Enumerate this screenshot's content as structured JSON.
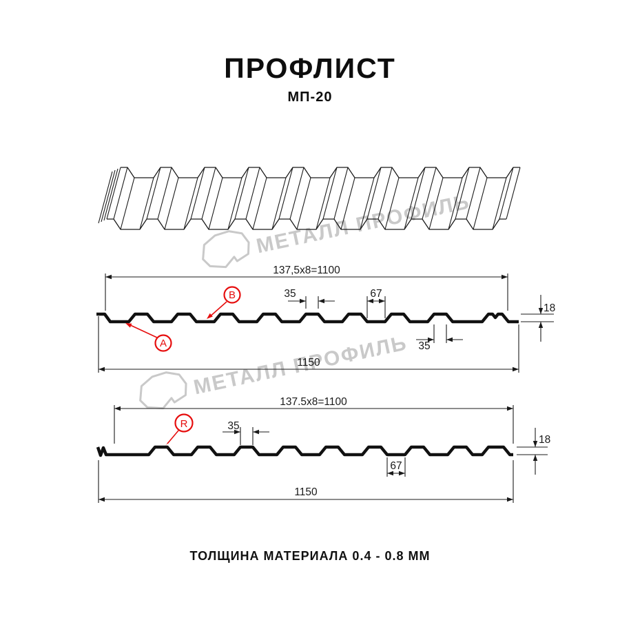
{
  "header": {
    "title": "ПРОФЛИСТ",
    "subtitle": "МП-20"
  },
  "footer": {
    "text": "ТОЛЩИНА МАТЕРИАЛА 0.4 - 0.8 ММ"
  },
  "watermark": {
    "text": "МЕТАЛЛ ПРОФИЛЬ",
    "color": "#c9c9c9"
  },
  "colors": {
    "line": "#1a1a1a",
    "profile": "#111111",
    "accent_red": "#e60e0e"
  },
  "profile_info": {
    "name": "МП-20",
    "rib_count_drawn": 10
  },
  "sections": {
    "a": {
      "labels": {
        "a": "A",
        "b": "B"
      },
      "dims": {
        "coverage": "137,5x8=1100",
        "rib_top": "35",
        "valley": "67",
        "rib_top_lower": "35",
        "overall": "1150",
        "height": "18"
      }
    },
    "r": {
      "labels": {
        "r": "R"
      },
      "dims": {
        "coverage": "137.5x8=1100",
        "rib_top": "35",
        "valley": "67",
        "overall": "1150",
        "height": "18"
      }
    }
  }
}
